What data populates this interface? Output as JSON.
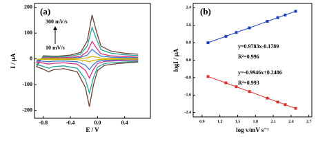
{
  "chart_data": [
    {
      "type": "line",
      "annotations": [
        "(a)",
        "300 mV/s",
        "10 mV/s"
      ],
      "xlabel": "E / V",
      "ylabel": "I / μA",
      "xlim": [
        -0.93,
        0.78
      ],
      "xticks": [
        -0.8,
        -0.4,
        {
          "value": 0,
          "label": "0.0"
        },
        0.4
      ],
      "ylim": [
        -230,
        215
      ],
      "yticks": [
        -200,
        -100,
        0,
        100,
        200
      ],
      "markers": false,
      "x": [
        0.6,
        0.3,
        0.1,
        0.0,
        -0.06,
        -0.12,
        -0.18,
        -0.3,
        -0.5,
        -0.65,
        -0.72,
        -0.8,
        -0.9,
        -0.8,
        -0.6,
        -0.4,
        -0.25,
        -0.15,
        -0.08,
        -0.02,
        0.05,
        0.2,
        0.4,
        0.6
      ],
      "series": [
        {
          "color": "#6b4030",
          "values": [
            -12,
            -18,
            -25,
            -45,
            -100,
            -185,
            -110,
            -50,
            -38,
            -42,
            -50,
            -40,
            -30,
            12,
            10,
            15,
            25,
            70,
            170,
            110,
            50,
            30,
            22,
            18
          ]
        },
        {
          "color": "#2aa198",
          "values": [
            -9,
            -13,
            -18,
            -32,
            -72,
            -133,
            -79,
            -36,
            -27,
            -30,
            -36,
            -29,
            -22,
            9,
            7,
            11,
            18,
            50,
            122,
            79,
            36,
            22,
            16,
            13
          ]
        },
        {
          "color": "#d33682",
          "values": [
            -5,
            -7,
            -10,
            -18,
            -40,
            -74,
            -44,
            -20,
            -15,
            -17,
            -20,
            -16,
            -12,
            5,
            4,
            6,
            10,
            28,
            68,
            44,
            20,
            12,
            9,
            7
          ]
        },
        {
          "color": "#3a7bd5",
          "values": [
            -3,
            -4,
            -6,
            -10,
            -22,
            -41,
            -24,
            -11,
            -8,
            -9,
            -11,
            -9,
            -7,
            3,
            2,
            3,
            6,
            15,
            37,
            24,
            11,
            7,
            5,
            4
          ]
        },
        {
          "color": "#d4b000",
          "values": [
            -1,
            -1,
            -2,
            -3,
            -6,
            -11,
            -7,
            -3,
            -2,
            -3,
            -3,
            -2,
            -2,
            1,
            1,
            1,
            2,
            4,
            10,
            7,
            3,
            2,
            1,
            1
          ]
        }
      ]
    },
    {
      "type": "line",
      "annotations": [
        "(b)",
        "y=0.9783x-0.1789",
        "R²=0.996",
        "y=-0.9946x+0.2486",
        "R²=0.993"
      ],
      "xlabel": "log v/mV s⁻¹",
      "ylabel": "logI / μA",
      "xlim": [
        0.75,
        2.75
      ],
      "xticks": [
        0.9,
        1.2,
        1.5,
        1.8,
        2.1,
        2.4,
        2.7
      ],
      "ylim": [
        -2.6,
        2.6
      ],
      "yticks": [
        -2.4,
        -1.6,
        -0.8,
        {
          "value": 0,
          "label": "0.0"
        },
        0.8,
        1.6,
        2.4
      ],
      "markers": true,
      "x": [
        1.0,
        1.301,
        1.477,
        1.699,
        2.0,
        2.176,
        2.301,
        2.477
      ],
      "series": [
        {
          "color": "#1f3fbf",
          "values": [
            0.8,
            1.09,
            1.27,
            1.48,
            1.78,
            1.95,
            2.07,
            2.24
          ]
        },
        {
          "color": "#e03030",
          "values": [
            -0.75,
            -1.04,
            -1.22,
            -1.44,
            -1.74,
            -1.92,
            -2.04,
            -2.21
          ]
        }
      ]
    }
  ]
}
